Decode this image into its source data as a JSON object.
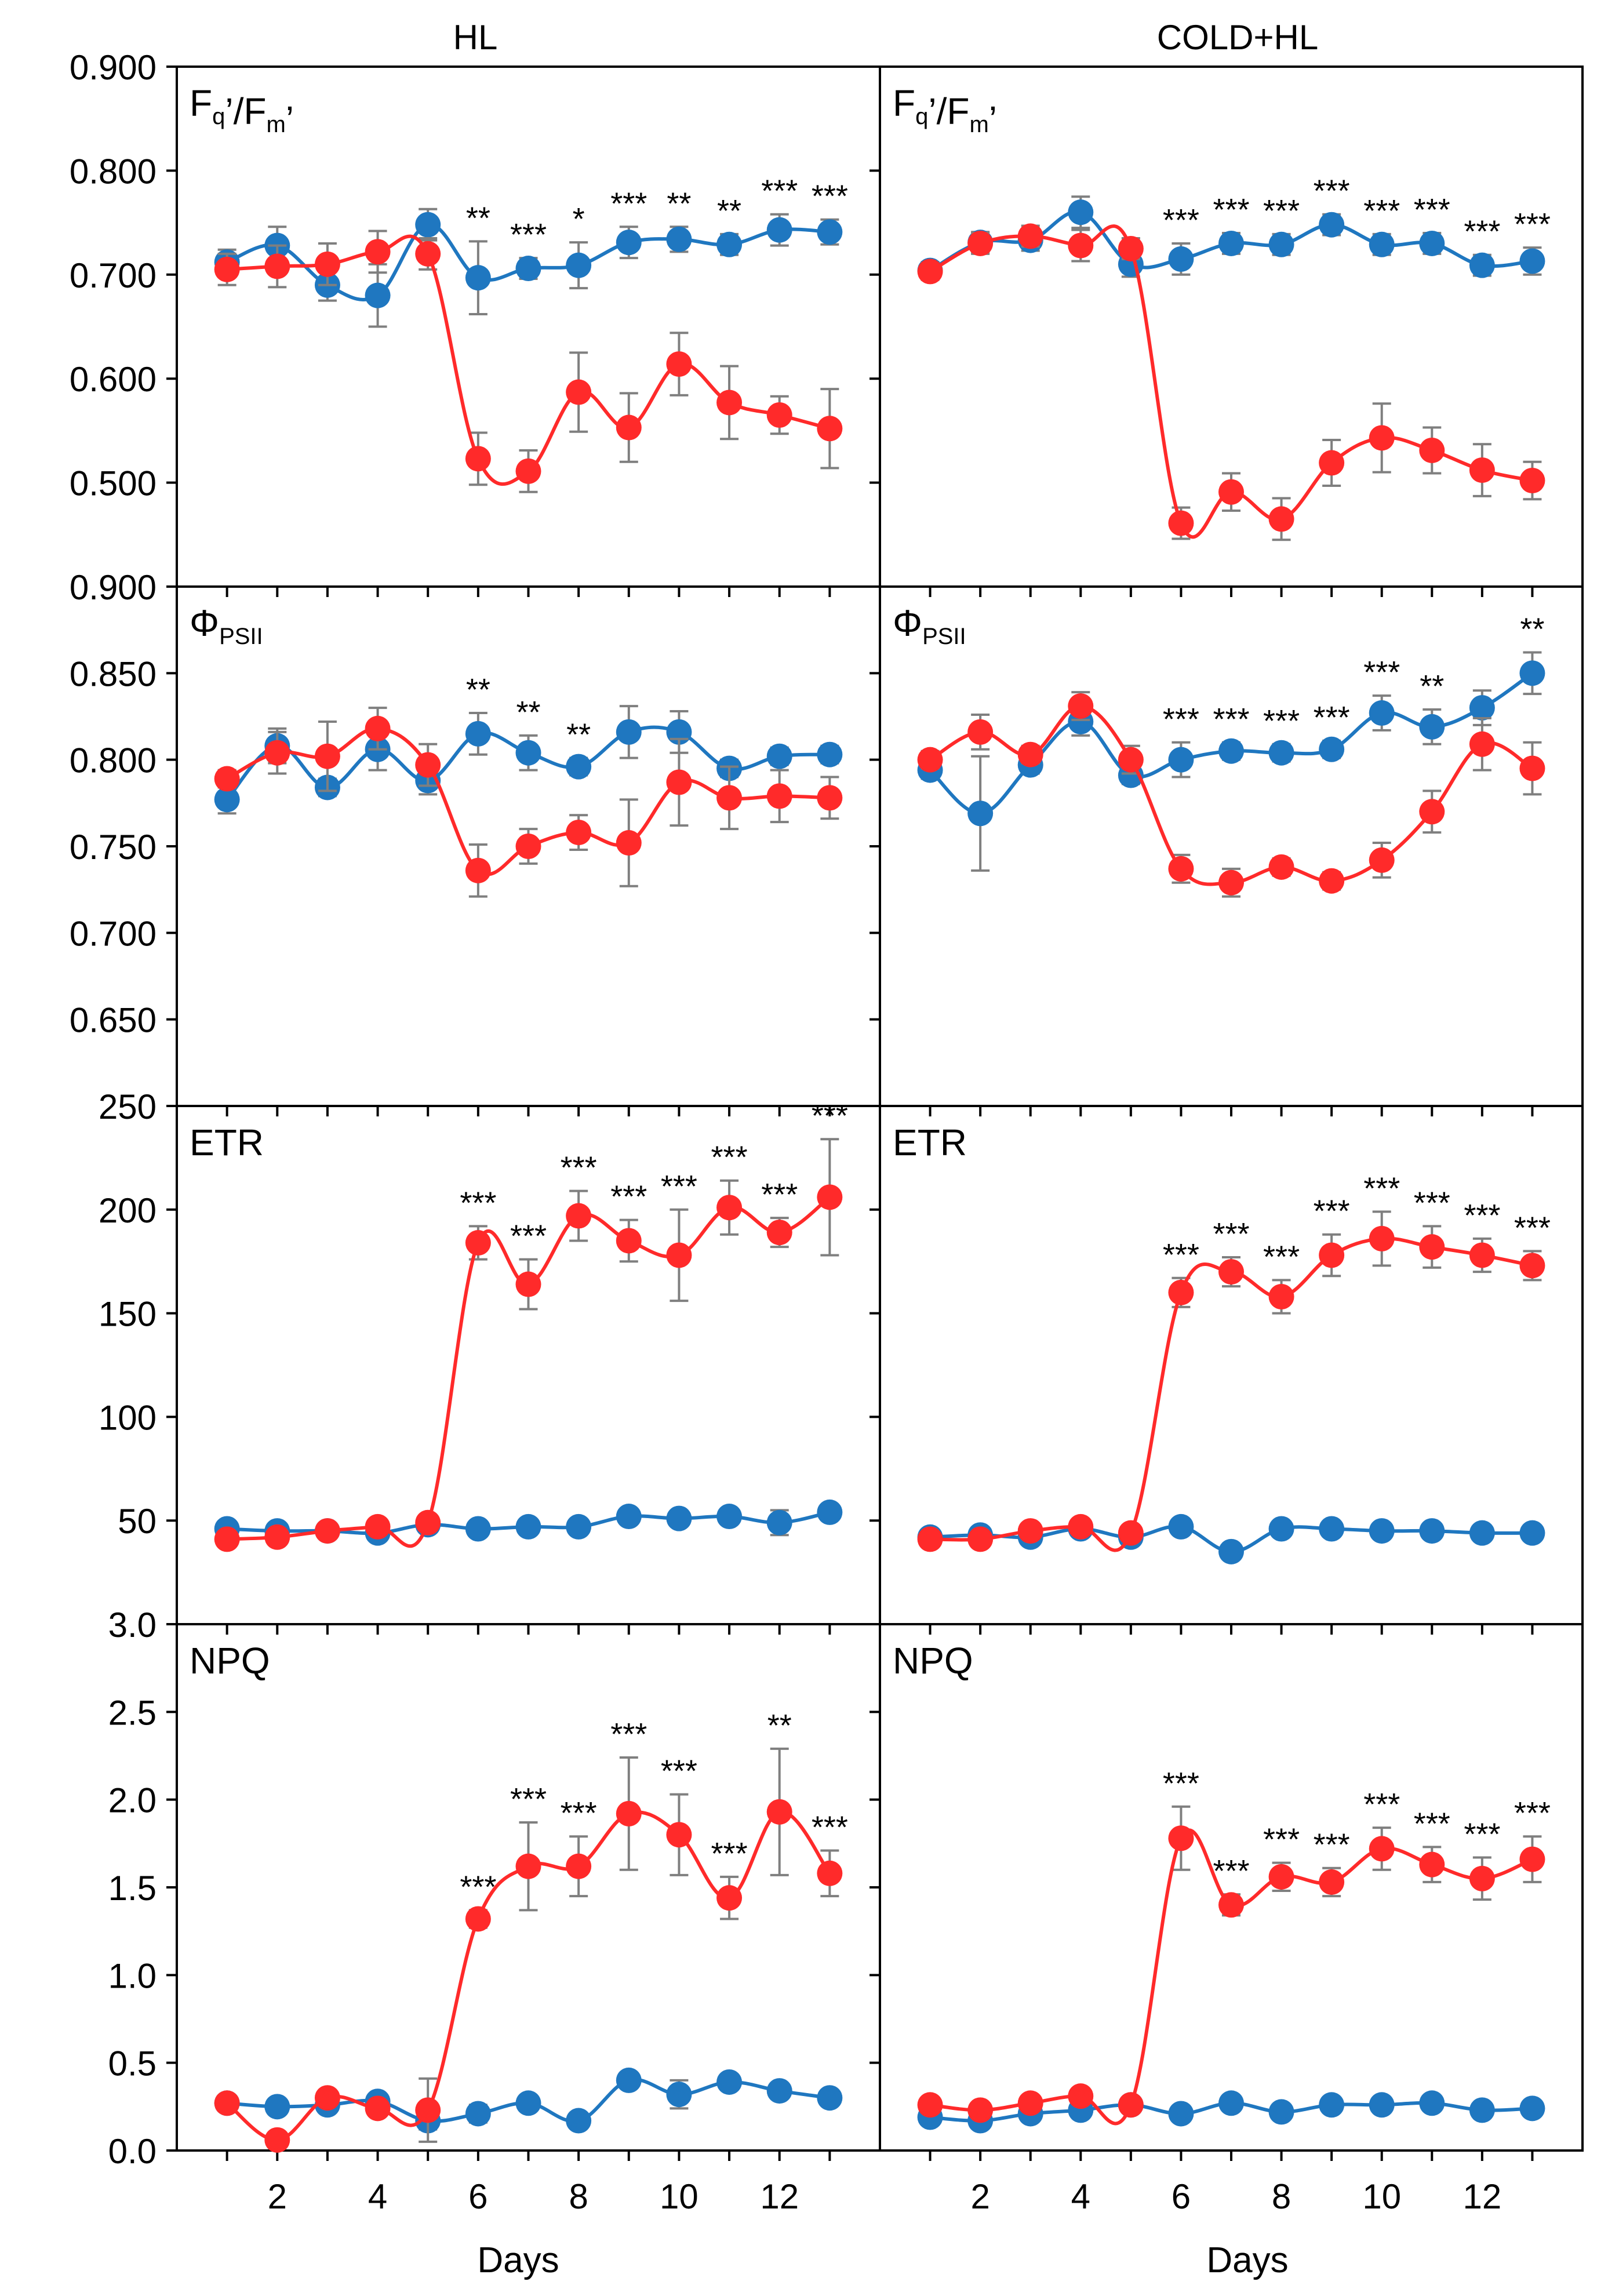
{
  "figure": {
    "column_titles": [
      "HL",
      "COLD+HL"
    ],
    "xlabel": "Days",
    "x_ticks": [
      2,
      4,
      6,
      8,
      10,
      12
    ],
    "x_range": [
      0,
      14
    ],
    "colors": {
      "control": "#1f77c0",
      "treatment": "#ff2a2a",
      "error": "#7f7f7f",
      "frame": "#000000"
    }
  },
  "chart_data": [
    {
      "type": "line",
      "row": 0,
      "col": 0,
      "label_main": "F",
      "label_parts": [
        [
          "F",
          ""
        ],
        [
          "q",
          "sub"
        ],
        [
          "’",
          ""
        ],
        [
          "/F",
          ""
        ],
        [
          "m",
          "sub"
        ],
        [
          "’",
          ""
        ]
      ],
      "ylim": [
        0.4,
        0.9
      ],
      "yticks": [
        0.5,
        0.6,
        0.7,
        0.8,
        0.9
      ],
      "ytick_labels": [
        "0.500",
        "0.600",
        "0.700",
        "0.800",
        "0.900"
      ],
      "x": [
        1,
        2,
        3,
        4,
        5,
        6,
        7,
        8,
        9,
        10,
        11,
        12,
        13
      ],
      "series": [
        {
          "name": "control",
          "values": [
            0.712,
            0.728,
            0.69,
            0.68,
            0.748,
            0.697,
            0.706,
            0.709,
            0.731,
            0.734,
            0.729,
            0.743,
            0.741
          ],
          "errors": [
            0.012,
            0.018,
            0.015,
            0.03,
            0.015,
            0.035,
            0.01,
            0.022,
            0.015,
            0.012,
            0.01,
            0.015,
            0.012
          ]
        },
        {
          "name": "treatment",
          "values": [
            0.705,
            0.708,
            0.71,
            0.722,
            0.72,
            0.523,
            0.511,
            0.587,
            0.553,
            0.614,
            0.577,
            0.565,
            0.552
          ],
          "errors": [
            0.015,
            0.02,
            0.02,
            0.02,
            0.015,
            0.025,
            0.02,
            0.038,
            0.033,
            0.03,
            0.035,
            0.018,
            0.038
          ]
        }
      ],
      "annotations": [
        {
          "x": 6,
          "text": "**"
        },
        {
          "x": 7,
          "text": "***"
        },
        {
          "x": 8,
          "text": "*"
        },
        {
          "x": 9,
          "text": "***"
        },
        {
          "x": 10,
          "text": "**"
        },
        {
          "x": 11,
          "text": "**"
        },
        {
          "x": 12,
          "text": "***"
        },
        {
          "x": 13,
          "text": "***"
        }
      ]
    },
    {
      "type": "line",
      "row": 0,
      "col": 1,
      "label_parts": [
        [
          "F",
          ""
        ],
        [
          "q",
          "sub"
        ],
        [
          "’",
          ""
        ],
        [
          "/F",
          ""
        ],
        [
          "m",
          "sub"
        ],
        [
          "’",
          ""
        ]
      ],
      "ylim": [
        0.4,
        0.9
      ],
      "yticks": [
        0.5,
        0.6,
        0.7,
        0.8,
        0.9
      ],
      "ytick_labels": [
        "0.500",
        "0.600",
        "0.700",
        "0.800",
        "0.900"
      ],
      "x": [
        1,
        2,
        3,
        4,
        5,
        6,
        7,
        8,
        9,
        10,
        11,
        12,
        13
      ],
      "series": [
        {
          "name": "control",
          "values": [
            0.704,
            0.731,
            0.733,
            0.76,
            0.71,
            0.715,
            0.73,
            0.729,
            0.748,
            0.729,
            0.73,
            0.709,
            0.713
          ],
          "errors": [
            0.008,
            0.01,
            0.01,
            0.015,
            0.012,
            0.015,
            0.01,
            0.01,
            0.01,
            0.01,
            0.01,
            0.01,
            0.013
          ]
        },
        {
          "name": "treatment",
          "values": [
            0.703,
            0.73,
            0.737,
            0.728,
            0.725,
            0.461,
            0.491,
            0.465,
            0.519,
            0.543,
            0.531,
            0.512,
            0.502
          ],
          "errors": [
            0.008,
            0.01,
            0.01,
            0.015,
            0.01,
            0.015,
            0.018,
            0.02,
            0.022,
            0.033,
            0.022,
            0.025,
            0.018
          ]
        }
      ],
      "annotations": [
        {
          "x": 6,
          "text": "***"
        },
        {
          "x": 7,
          "text": "***"
        },
        {
          "x": 8,
          "text": "***"
        },
        {
          "x": 9,
          "text": "***"
        },
        {
          "x": 10,
          "text": "***"
        },
        {
          "x": 11,
          "text": "***"
        },
        {
          "x": 12,
          "text": "***"
        },
        {
          "x": 13,
          "text": "***"
        }
      ]
    },
    {
      "type": "line",
      "row": 1,
      "col": 0,
      "label_parts": [
        [
          "Φ",
          ""
        ],
        [
          "PSII",
          "sub"
        ]
      ],
      "ylim": [
        0.6,
        0.9
      ],
      "yticks": [
        0.65,
        0.7,
        0.75,
        0.8,
        0.85,
        0.9
      ],
      "ytick_labels": [
        "0.650",
        "0.700",
        "0.750",
        "0.800",
        "0.850",
        "0.900"
      ],
      "x": [
        1,
        2,
        3,
        4,
        5,
        6,
        7,
        8,
        9,
        10,
        11,
        12,
        13
      ],
      "series": [
        {
          "name": "control",
          "values": [
            0.777,
            0.808,
            0.784,
            0.806,
            0.788,
            0.815,
            0.804,
            0.796,
            0.816,
            0.816,
            0.795,
            0.802,
            0.803
          ],
          "errors": [
            0.008,
            0.01,
            0.005,
            0.012,
            0.008,
            0.012,
            0.01,
            0.005,
            0.015,
            0.012,
            0.005,
            0.005,
            0.005
          ]
        },
        {
          "name": "treatment",
          "values": [
            0.789,
            0.804,
            0.802,
            0.818,
            0.797,
            0.736,
            0.75,
            0.758,
            0.752,
            0.787,
            0.778,
            0.779,
            0.778
          ],
          "errors": [
            0.005,
            0.012,
            0.02,
            0.012,
            0.012,
            0.015,
            0.01,
            0.01,
            0.025,
            0.025,
            0.018,
            0.015,
            0.012
          ]
        }
      ],
      "annotations": [
        {
          "x": 6,
          "text": "**"
        },
        {
          "x": 7,
          "text": "**"
        },
        {
          "x": 8,
          "text": "**"
        }
      ]
    },
    {
      "type": "line",
      "row": 1,
      "col": 1,
      "label_parts": [
        [
          "Φ",
          ""
        ],
        [
          "PSII",
          "sub"
        ]
      ],
      "ylim": [
        0.6,
        0.9
      ],
      "yticks": [
        0.65,
        0.7,
        0.75,
        0.8,
        0.85,
        0.9
      ],
      "ytick_labels": [
        "0.650",
        "0.700",
        "0.750",
        "0.800",
        "0.850",
        "0.900"
      ],
      "x": [
        1,
        2,
        3,
        4,
        5,
        6,
        7,
        8,
        9,
        10,
        11,
        12,
        13
      ],
      "series": [
        {
          "name": "control",
          "values": [
            0.794,
            0.769,
            0.797,
            0.822,
            0.791,
            0.8,
            0.805,
            0.804,
            0.806,
            0.827,
            0.819,
            0.83,
            0.85
          ],
          "errors": [
            0.005,
            0.033,
            0.005,
            0.008,
            0.005,
            0.01,
            0.005,
            0.005,
            0.005,
            0.01,
            0.01,
            0.01,
            0.012
          ]
        },
        {
          "name": "treatment",
          "values": [
            0.8,
            0.816,
            0.803,
            0.831,
            0.8,
            0.737,
            0.729,
            0.738,
            0.73,
            0.742,
            0.77,
            0.809,
            0.795
          ],
          "errors": [
            0.005,
            0.01,
            0.005,
            0.008,
            0.008,
            0.008,
            0.008,
            0.005,
            0.005,
            0.01,
            0.012,
            0.015,
            0.015
          ]
        }
      ],
      "annotations": [
        {
          "x": 6,
          "text": "***"
        },
        {
          "x": 7,
          "text": "***"
        },
        {
          "x": 8,
          "text": "***"
        },
        {
          "x": 9,
          "text": "***"
        },
        {
          "x": 10,
          "text": "***"
        },
        {
          "x": 11,
          "text": "**"
        },
        {
          "x": 13,
          "text": "**"
        }
      ]
    },
    {
      "type": "line",
      "row": 2,
      "col": 0,
      "label_parts": [
        [
          "ETR",
          ""
        ]
      ],
      "ylim": [
        0,
        250
      ],
      "yticks": [
        50,
        100,
        150,
        200,
        250
      ],
      "ytick_labels": [
        "50",
        "100",
        "150",
        "200",
        "250"
      ],
      "x": [
        1,
        2,
        3,
        4,
        5,
        6,
        7,
        8,
        9,
        10,
        11,
        12,
        13
      ],
      "series": [
        {
          "name": "control",
          "values": [
            46,
            45,
            45,
            44,
            48,
            46,
            47,
            47,
            52,
            51,
            52,
            49,
            54
          ],
          "errors": [
            2,
            2,
            2,
            3,
            2,
            2,
            2,
            2,
            3,
            2,
            3,
            6,
            3
          ]
        },
        {
          "name": "treatment",
          "values": [
            41,
            42,
            45,
            47,
            49,
            184,
            164,
            197,
            185,
            178,
            201,
            189,
            206
          ],
          "errors": [
            3,
            3,
            3,
            3,
            3,
            8,
            12,
            12,
            10,
            22,
            13,
            7,
            28
          ]
        }
      ],
      "annotations": [
        {
          "x": 6,
          "text": "***"
        },
        {
          "x": 7,
          "text": "***"
        },
        {
          "x": 8,
          "text": "***"
        },
        {
          "x": 9,
          "text": "***"
        },
        {
          "x": 10,
          "text": "***"
        },
        {
          "x": 11,
          "text": "***"
        },
        {
          "x": 12,
          "text": "***"
        },
        {
          "x": 13,
          "text": "***"
        }
      ]
    },
    {
      "type": "line",
      "row": 2,
      "col": 1,
      "label_parts": [
        [
          "ETR",
          ""
        ]
      ],
      "ylim": [
        0,
        250
      ],
      "yticks": [
        50,
        100,
        150,
        200,
        250
      ],
      "ytick_labels": [
        "50",
        "100",
        "150",
        "200",
        "250"
      ],
      "x": [
        1,
        2,
        3,
        4,
        5,
        6,
        7,
        8,
        9,
        10,
        11,
        12,
        13
      ],
      "series": [
        {
          "name": "control",
          "values": [
            42,
            43,
            42,
            46,
            42,
            47,
            35,
            46,
            46,
            45,
            45,
            44,
            44
          ],
          "errors": [
            2,
            2,
            2,
            2,
            2,
            2,
            2,
            2,
            2,
            2,
            2,
            2,
            2
          ]
        },
        {
          "name": "treatment",
          "values": [
            41,
            41,
            45,
            47,
            44,
            160,
            170,
            158,
            178,
            186,
            182,
            178,
            173
          ],
          "errors": [
            2,
            3,
            3,
            3,
            3,
            7,
            7,
            8,
            10,
            13,
            10,
            8,
            7
          ]
        }
      ],
      "annotations": [
        {
          "x": 6,
          "text": "***"
        },
        {
          "x": 7,
          "text": "***"
        },
        {
          "x": 8,
          "text": "***"
        },
        {
          "x": 9,
          "text": "***"
        },
        {
          "x": 10,
          "text": "***"
        },
        {
          "x": 11,
          "text": "***"
        },
        {
          "x": 12,
          "text": "***"
        },
        {
          "x": 13,
          "text": "***"
        }
      ]
    },
    {
      "type": "line",
      "row": 3,
      "col": 0,
      "label_parts": [
        [
          "NPQ",
          ""
        ]
      ],
      "ylim": [
        0,
        3
      ],
      "yticks": [
        0,
        0.5,
        1,
        1.5,
        2,
        2.5,
        3
      ],
      "ytick_labels": [
        "0.0",
        "0.5",
        "1.0",
        "1.5",
        "2.0",
        "2.5",
        "3.0"
      ],
      "x": [
        1,
        2,
        3,
        4,
        5,
        6,
        7,
        8,
        9,
        10,
        11,
        12,
        13
      ],
      "series": [
        {
          "name": "control",
          "values": [
            0.27,
            0.25,
            0.26,
            0.28,
            0.17,
            0.21,
            0.27,
            0.17,
            0.4,
            0.32,
            0.39,
            0.34,
            0.3
          ],
          "errors": [
            0.03,
            0.03,
            0.03,
            0.03,
            0.05,
            0.05,
            0.03,
            0.03,
            0.04,
            0.08,
            0.04,
            0.04,
            0.03
          ]
        },
        {
          "name": "treatment",
          "values": [
            0.27,
            0.06,
            0.3,
            0.24,
            0.23,
            1.32,
            1.62,
            1.62,
            1.92,
            1.8,
            1.44,
            1.93,
            1.58
          ],
          "errors": [
            0.04,
            0.04,
            0.04,
            0.04,
            0.18,
            0.05,
            0.25,
            0.17,
            0.32,
            0.23,
            0.12,
            0.36,
            0.13
          ]
        }
      ],
      "annotations": [
        {
          "x": 6,
          "text": "***"
        },
        {
          "x": 7,
          "text": "***"
        },
        {
          "x": 8,
          "text": "***"
        },
        {
          "x": 9,
          "text": "***"
        },
        {
          "x": 10,
          "text": "***"
        },
        {
          "x": 11,
          "text": "***"
        },
        {
          "x": 12,
          "text": "**"
        },
        {
          "x": 13,
          "text": "***"
        }
      ]
    },
    {
      "type": "line",
      "row": 3,
      "col": 1,
      "label_parts": [
        [
          "NPQ",
          ""
        ]
      ],
      "ylim": [
        0,
        3
      ],
      "yticks": [
        0,
        0.5,
        1,
        1.5,
        2,
        2.5,
        3
      ],
      "ytick_labels": [
        "0.0",
        "0.5",
        "1.0",
        "1.5",
        "2.0",
        "2.5",
        "3.0"
      ],
      "x": [
        1,
        2,
        3,
        4,
        5,
        6,
        7,
        8,
        9,
        10,
        11,
        12,
        13
      ],
      "series": [
        {
          "name": "control",
          "values": [
            0.19,
            0.17,
            0.21,
            0.23,
            0.26,
            0.21,
            0.27,
            0.22,
            0.26,
            0.26,
            0.27,
            0.23,
            0.24
          ],
          "errors": [
            0.02,
            0.02,
            0.02,
            0.02,
            0.02,
            0.02,
            0.02,
            0.02,
            0.02,
            0.02,
            0.02,
            0.02,
            0.02
          ]
        },
        {
          "name": "treatment",
          "values": [
            0.26,
            0.23,
            0.27,
            0.31,
            0.26,
            1.78,
            1.4,
            1.56,
            1.53,
            1.72,
            1.63,
            1.55,
            1.66
          ],
          "errors": [
            0.03,
            0.03,
            0.03,
            0.03,
            0.03,
            0.18,
            0.06,
            0.08,
            0.08,
            0.12,
            0.1,
            0.12,
            0.13
          ]
        }
      ],
      "annotations": [
        {
          "x": 6,
          "text": "***"
        },
        {
          "x": 7,
          "text": "***"
        },
        {
          "x": 8,
          "text": "***"
        },
        {
          "x": 9,
          "text": "***"
        },
        {
          "x": 10,
          "text": "***"
        },
        {
          "x": 11,
          "text": "***"
        },
        {
          "x": 12,
          "text": "***"
        },
        {
          "x": 13,
          "text": "***"
        }
      ]
    }
  ]
}
